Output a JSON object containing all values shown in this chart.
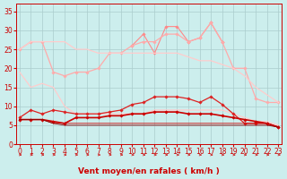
{
  "x": [
    0,
    1,
    2,
    3,
    4,
    5,
    6,
    7,
    8,
    9,
    10,
    11,
    12,
    13,
    14,
    15,
    16,
    17,
    18,
    19,
    20,
    21,
    22,
    23
  ],
  "series": [
    {
      "name": "max_gust_jagged",
      "color": "#ff8888",
      "linewidth": 0.8,
      "marker": "D",
      "markersize": 1.8,
      "values": [
        null,
        null,
        null,
        null,
        null,
        null,
        null,
        null,
        null,
        null,
        26,
        29,
        24,
        31,
        31,
        27,
        28,
        32,
        27,
        null,
        null,
        null,
        null,
        null
      ]
    },
    {
      "name": "upper_max",
      "color": "#ffaaaa",
      "linewidth": 0.9,
      "marker": "D",
      "markersize": 1.8,
      "values": [
        25,
        27,
        27,
        19,
        18,
        19,
        19,
        20,
        24,
        24,
        26,
        27,
        27,
        29,
        29,
        27,
        28,
        32,
        27,
        20,
        20,
        12,
        11,
        11
      ]
    },
    {
      "name": "upper_envelope",
      "color": "#ffcccc",
      "linewidth": 0.9,
      "marker": null,
      "markersize": 0,
      "values": [
        25,
        27,
        27,
        27,
        27,
        25,
        25,
        24,
        24,
        24,
        24,
        24,
        24,
        24,
        24,
        23,
        22,
        22,
        21,
        20,
        18,
        15,
        13,
        11
      ]
    },
    {
      "name": "lower_envelope",
      "color": "#ffcccc",
      "linewidth": 0.9,
      "marker": null,
      "markersize": 0,
      "values": [
        19,
        15,
        16,
        15,
        10,
        8,
        8,
        8,
        8,
        8,
        8,
        8,
        9,
        9,
        9,
        9,
        9,
        9,
        9,
        8,
        7,
        6,
        6,
        5
      ]
    },
    {
      "name": "avg_gust",
      "color": "#dd2222",
      "linewidth": 0.9,
      "marker": "D",
      "markersize": 1.8,
      "values": [
        7,
        9,
        8,
        9,
        8.5,
        8,
        8,
        8,
        8.5,
        9,
        10.5,
        11,
        12.5,
        12.5,
        12.5,
        12,
        11,
        12.5,
        10.5,
        8,
        5.5,
        5.5,
        5.5,
        4.5
      ]
    },
    {
      "name": "avg_wind",
      "color": "#cc0000",
      "linewidth": 1.2,
      "marker": "D",
      "markersize": 1.8,
      "values": [
        6.5,
        6.5,
        6.5,
        6,
        5.5,
        7,
        7,
        7,
        7.5,
        7.5,
        8,
        8,
        8.5,
        8.5,
        8.5,
        8,
        8,
        8,
        7.5,
        7,
        6.5,
        6,
        5.5,
        4.5
      ]
    },
    {
      "name": "lower_wind_env",
      "color": "#cc0000",
      "linewidth": 0.6,
      "marker": null,
      "markersize": 0,
      "values": [
        6.5,
        6.5,
        6.5,
        5.5,
        5.5,
        5.5,
        5.5,
        5.5,
        5.5,
        5.5,
        5.5,
        5.5,
        5.5,
        5.5,
        5.5,
        5.5,
        5.5,
        5.5,
        5.5,
        5.5,
        5.5,
        5.5,
        5.5,
        4.5
      ]
    },
    {
      "name": "bottom_line",
      "color": "#880000",
      "linewidth": 0.6,
      "marker": null,
      "markersize": 0,
      "values": [
        6.5,
        6.5,
        6.5,
        5.5,
        5.0,
        5.0,
        5.0,
        5.0,
        5.0,
        5.0,
        5.0,
        5.0,
        5.0,
        5.0,
        5.0,
        5.0,
        5.0,
        5.0,
        5.0,
        5.0,
        5.0,
        5.0,
        5.0,
        4.5
      ]
    }
  ],
  "xlabel": "Vent moyen/en rafales ( km/h )",
  "xlabel_fontsize": 6.5,
  "xlabel_color": "#cc0000",
  "xlabel_fontweight": "bold",
  "ylabel_ticks": [
    0,
    5,
    10,
    15,
    20,
    25,
    30,
    35
  ],
  "xlim": [
    -0.3,
    23.3
  ],
  "ylim": [
    0,
    37
  ],
  "background_color": "#cceeed",
  "grid_color": "#aacccc",
  "tick_color": "#cc0000",
  "tick_fontsize": 5.5,
  "arrow_color": "#cc0000"
}
